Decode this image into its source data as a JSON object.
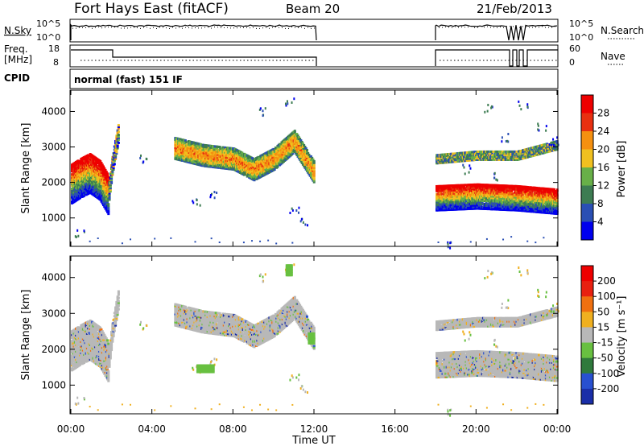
{
  "header": {
    "station": "Fort Hays East (fitACF)",
    "beam": "Beam 20",
    "date": "21/Feb/2013"
  },
  "noise_panel": {
    "left_label": "N.Sky",
    "right_label": "N.Search",
    "ticks_left": [
      "10^5",
      "10^0"
    ],
    "ticks_right": [
      "10^5",
      "10^0"
    ]
  },
  "freq_panel": {
    "left_label_1": "Freq.",
    "left_label_2": "[MHz]",
    "right_label": "Nave",
    "ticks_left": [
      "18",
      "8"
    ],
    "ticks_right": [
      "60",
      "0"
    ]
  },
  "cpid": {
    "label": "CPID",
    "mode": "normal (fast) 151 IF"
  },
  "x_axis": {
    "title": "Time UT",
    "ticks": [
      "00:00",
      "04:00",
      "08:00",
      "12:00",
      "16:00",
      "20:00",
      "00:00"
    ]
  },
  "chart_data": [
    {
      "type": "heatmap",
      "title": "Power",
      "xlabel": "Time UT",
      "ylabel": "Slant Range [km]",
      "x_range_hours": [
        0,
        24
      ],
      "y_range_km": [
        200,
        4600
      ],
      "y_ticks": [
        "1000",
        "2000",
        "3000",
        "4000"
      ],
      "colorbar": {
        "label": "Power [dB]",
        "ticks": [
          "4",
          "8",
          "12",
          "16",
          "20",
          "24",
          "28"
        ],
        "colors": [
          "#0000ee",
          "#2a4fb4",
          "#3d7c52",
          "#68b048",
          "#f0c020",
          "#f59010",
          "#e83010",
          "#ee0000"
        ]
      }
    },
    {
      "type": "heatmap",
      "title": "Velocity",
      "xlabel": "Time UT",
      "ylabel": "Slant Range [km]",
      "x_range_hours": [
        0,
        24
      ],
      "y_range_km": [
        200,
        4600
      ],
      "y_ticks": [
        "1000",
        "2000",
        "3000",
        "4000"
      ],
      "colorbar": {
        "label": "Velocity [m s⁻¹]",
        "ticks": [
          "200",
          "100",
          "50",
          "15",
          "-15",
          "-50",
          "-100",
          "-200"
        ],
        "colors": [
          "#1a2ea8",
          "#2850d0",
          "#2f7a3c",
          "#68c040",
          "#b8b8b8",
          "#f0b020",
          "#f07010",
          "#e82010",
          "#ee0000"
        ]
      }
    }
  ]
}
